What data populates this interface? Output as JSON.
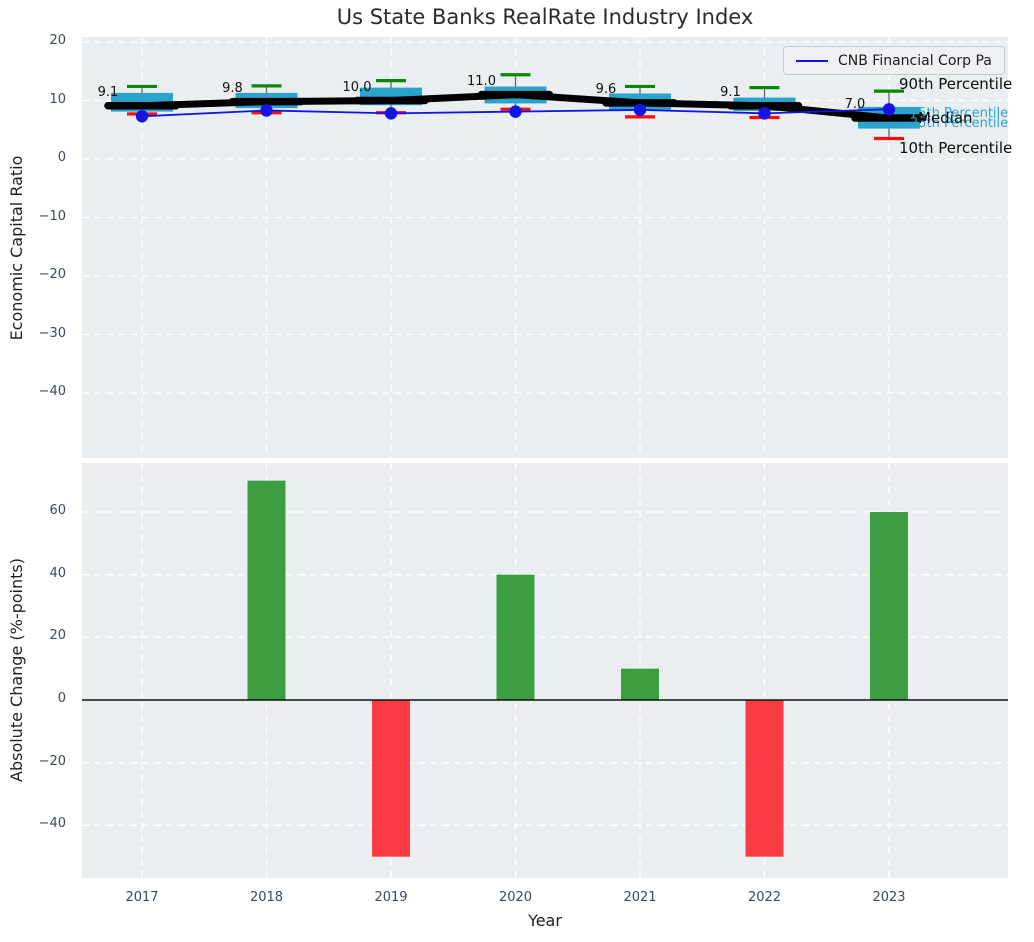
{
  "title": "Us State Banks RealRate Industry Index",
  "legend": {
    "label": "CNB Financial Corp Pa"
  },
  "percentile_labels": {
    "p90": "90th Percentile",
    "p75": "75th Percentile",
    "median": "Median",
    "p25": "25th Percentile",
    "p10": "10th Percentile"
  },
  "colors": {
    "plot_bg": "#e9eef0",
    "grid": "#ffffff",
    "box_fill": "#2aa3cd",
    "median_line": "#000000",
    "p90_cap": "#0a850a",
    "p10_cap": "#fb0d0d",
    "whisker": "#666666",
    "company_line": "#1414e6",
    "bar_positive": "#3d9e41",
    "bar_negative": "#fb3b42",
    "tick_text": "#3b4a5c",
    "percentile_accent": "#2aa3cf"
  },
  "chart_data": [
    {
      "type": "box",
      "title": "Us State Banks RealRate Industry Index",
      "ylabel": "Economic Capital Ratio",
      "ylim": [
        -51,
        21
      ],
      "grid": true,
      "legend_position": "top-right",
      "categories": [
        "2017",
        "2018",
        "2019",
        "2020",
        "2021",
        "2022",
        "2023"
      ],
      "yticks": [
        {
          "v": 20,
          "label": "20"
        },
        {
          "v": 10,
          "label": "10"
        },
        {
          "v": 0,
          "label": "0"
        },
        {
          "v": -10,
          "label": "−10"
        },
        {
          "v": -20,
          "label": "−20"
        },
        {
          "v": -30,
          "label": "−30"
        },
        {
          "v": -40,
          "label": "−40"
        }
      ],
      "boxes": [
        {
          "p10": 7.7,
          "p25": 8.1,
          "median": 9.1,
          "p75": 11.3,
          "p90": 12.4
        },
        {
          "p10": 7.9,
          "p25": 8.7,
          "median": 9.8,
          "p75": 11.3,
          "p90": 12.5
        },
        {
          "p10": 7.9,
          "p25": 9.2,
          "median": 10.0,
          "p75": 12.2,
          "p90": 13.4
        },
        {
          "p10": 8.5,
          "p25": 9.5,
          "median": 11.0,
          "p75": 12.4,
          "p90": 14.4
        },
        {
          "p10": 7.2,
          "p25": 8.4,
          "median": 9.6,
          "p75": 11.2,
          "p90": 12.4
        },
        {
          "p10": 7.1,
          "p25": 8.2,
          "median": 9.1,
          "p75": 10.5,
          "p90": 12.2
        },
        {
          "p10": 3.5,
          "p25": 5.2,
          "median": 7.0,
          "p75": 8.9,
          "p90": 11.6
        }
      ],
      "median_labels": [
        "9.1",
        "9.8",
        "10.0",
        "11.0",
        "9.6",
        "9.1",
        "7.0"
      ],
      "series": [
        {
          "name": "CNB Financial Corp Pa",
          "values": [
            7.3,
            8.3,
            7.8,
            8.1,
            8.4,
            7.8,
            8.5
          ]
        },
        {
          "name": "Median",
          "values": [
            9.1,
            9.8,
            10.0,
            11.0,
            9.6,
            9.1,
            7.0
          ]
        }
      ]
    },
    {
      "type": "bar",
      "ylabel": "Absolute Change (%-points)",
      "xlabel": "Year",
      "ylim": [
        -57,
        76
      ],
      "grid": true,
      "categories": [
        "2017",
        "2018",
        "2019",
        "2020",
        "2021",
        "2022",
        "2023"
      ],
      "values": [
        0,
        70,
        -50,
        40,
        10,
        -50,
        60
      ],
      "yticks": [
        {
          "v": 60,
          "label": "60"
        },
        {
          "v": 40,
          "label": "40"
        },
        {
          "v": 20,
          "label": "20"
        },
        {
          "v": 0,
          "label": "0"
        },
        {
          "v": -20,
          "label": "−20"
        },
        {
          "v": -40,
          "label": "−40"
        }
      ]
    }
  ]
}
